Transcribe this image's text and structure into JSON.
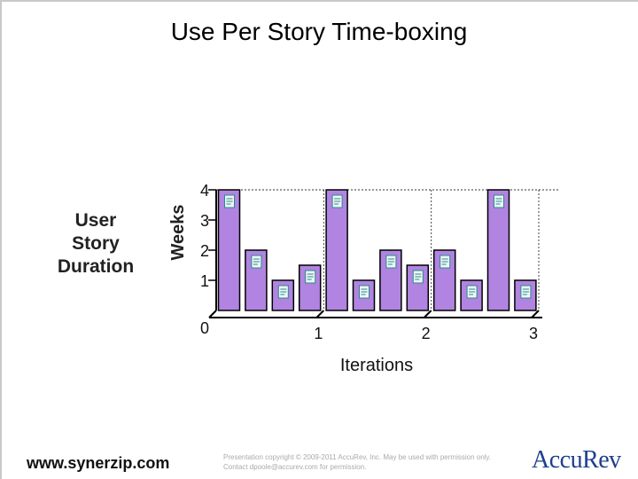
{
  "slide": {
    "title": "Use Per Story Time-boxing",
    "side_label_lines": [
      "User",
      "Story",
      "Duration"
    ],
    "footer_url": "www.synerzip.com",
    "footer_copyright": "Presentation copyright © 2009-2011 AccuRev, Inc. May be used with permission only. Contact dpoole@accurev.com for permission.",
    "logo_text": "AccuRev"
  },
  "chart_data": {
    "type": "bar",
    "title": "Use Per Story Time-boxing",
    "ylabel": "Weeks",
    "xlabel": "Iterations",
    "ylim": [
      0,
      4
    ],
    "yticks": [
      "0",
      "1",
      "2",
      "3",
      "4"
    ],
    "xticks": [
      "1",
      "2",
      "3"
    ],
    "values": [
      4,
      2,
      1,
      1.5,
      4,
      1,
      2,
      1.5,
      2,
      1,
      4,
      1
    ],
    "bar_color": "#b084e0",
    "icon": "document-icon",
    "grid": false,
    "reference_line": 4
  }
}
